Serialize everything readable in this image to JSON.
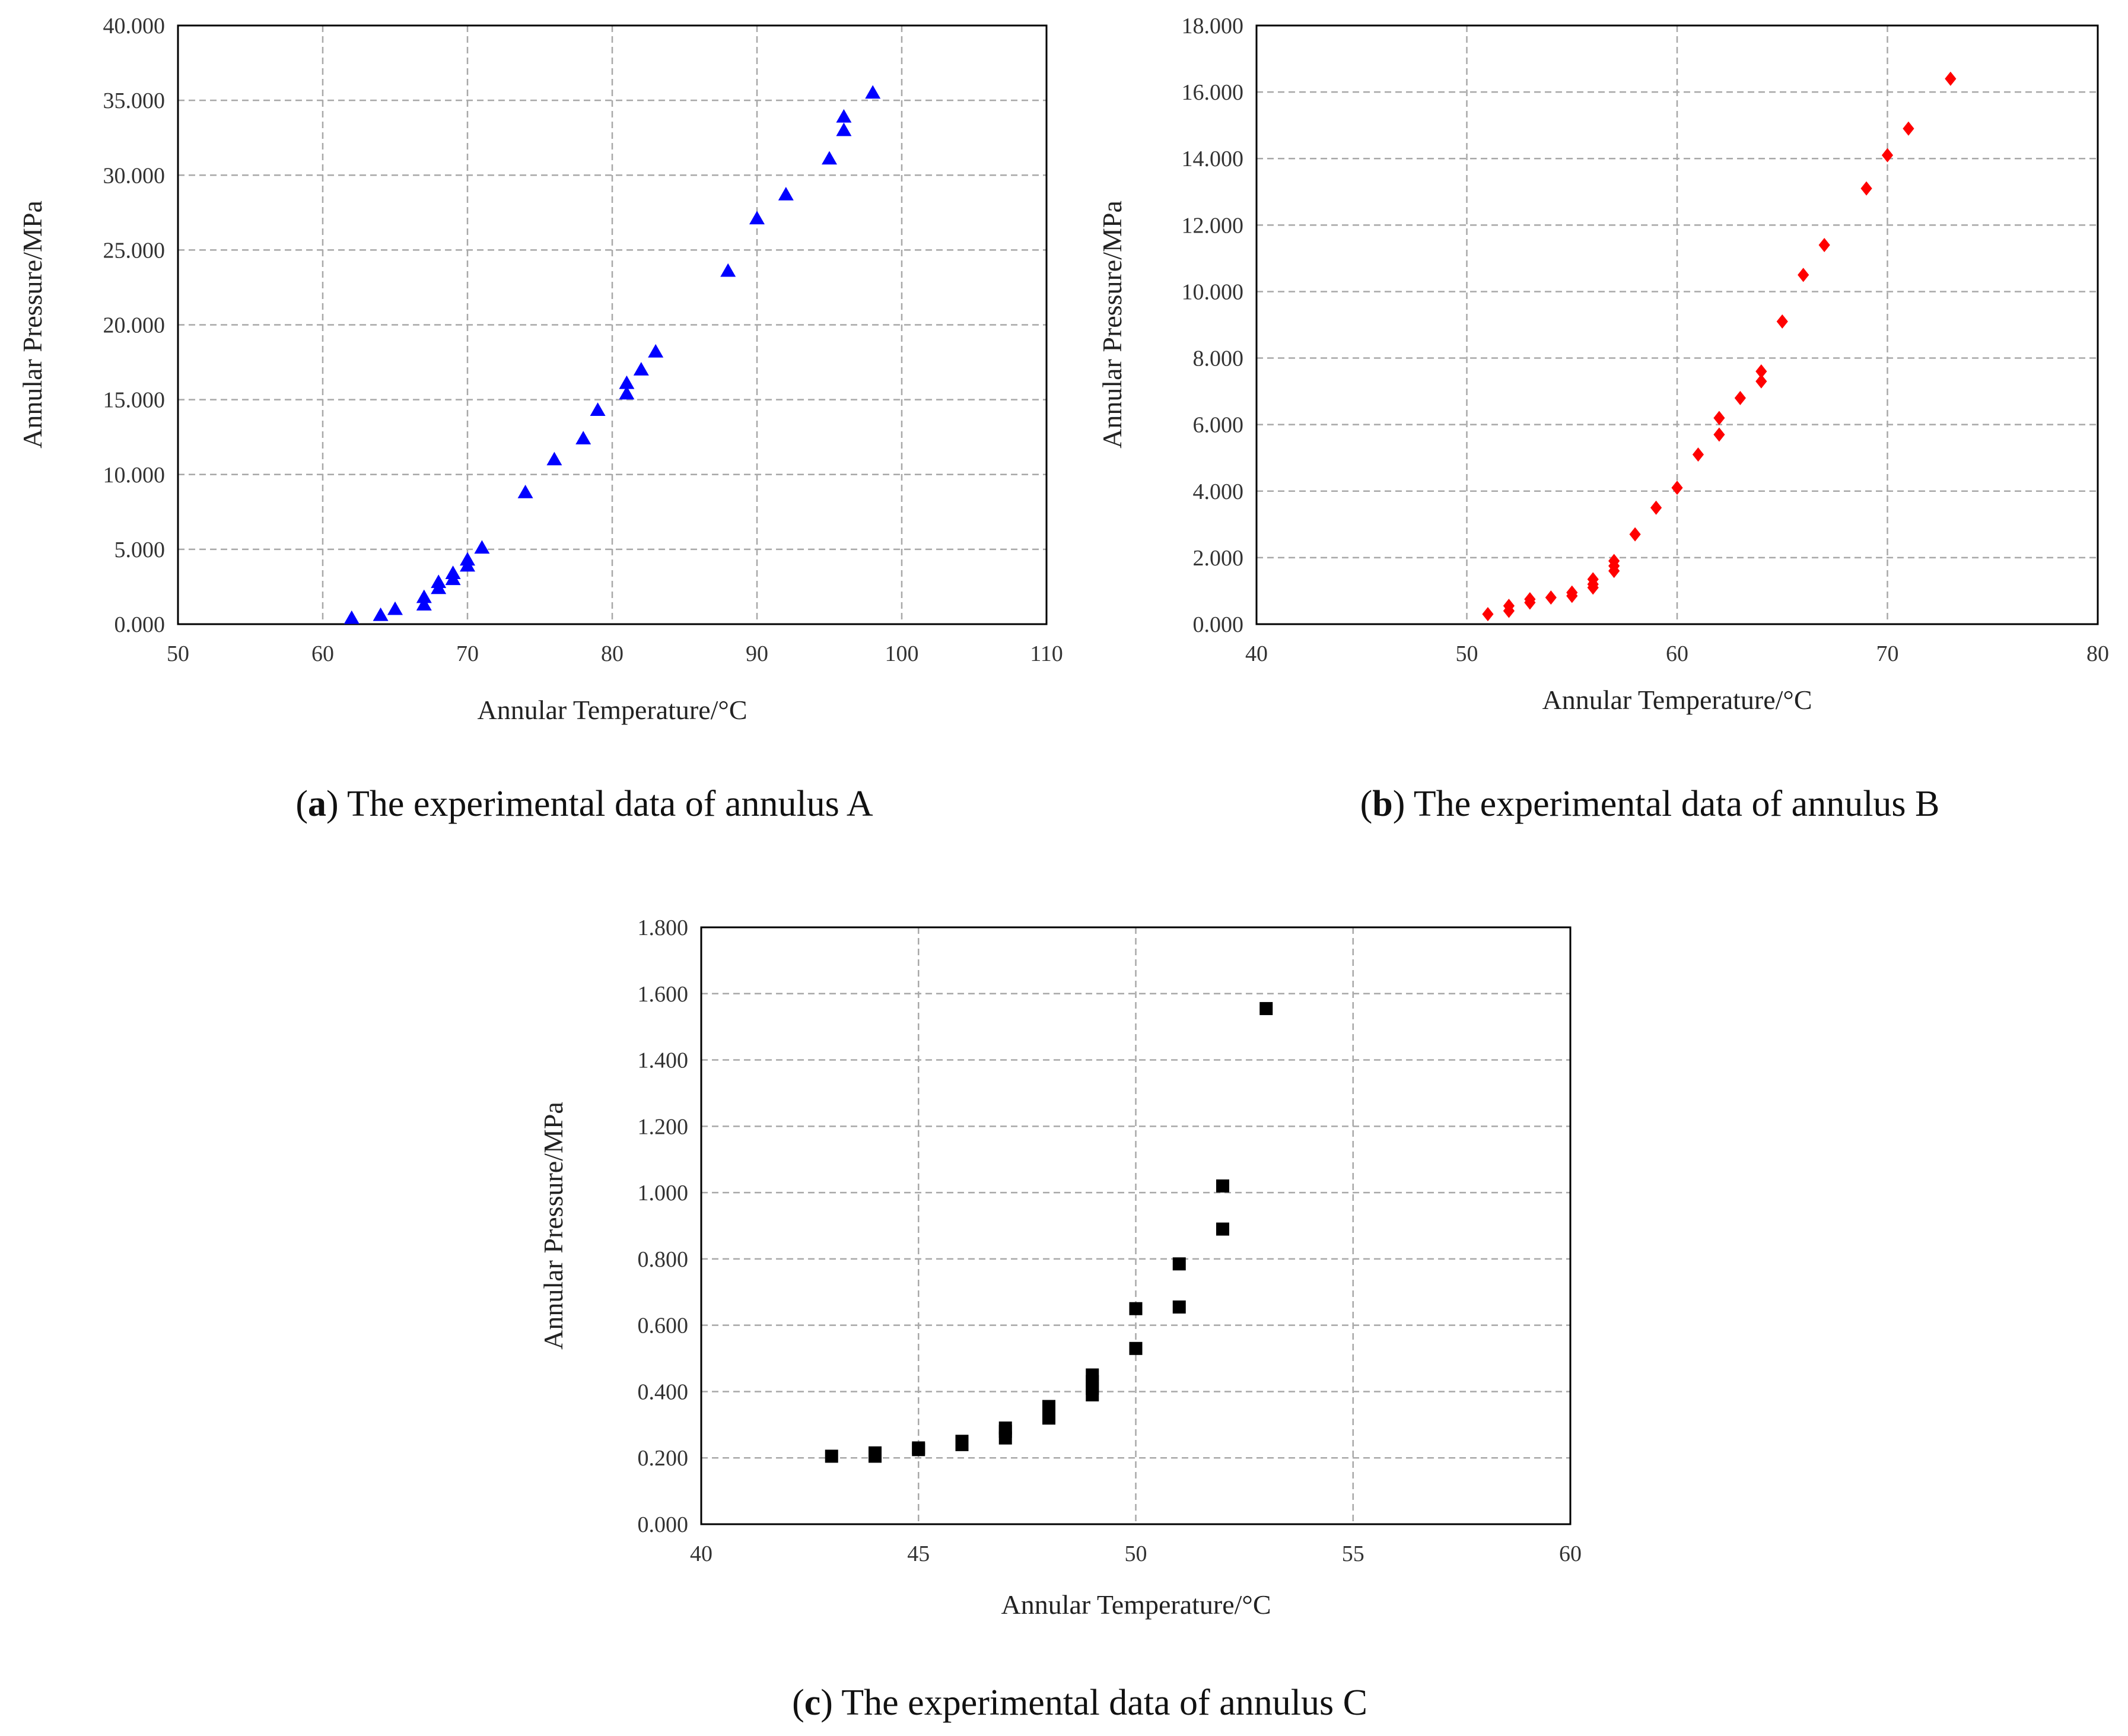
{
  "chart_data": [
    {
      "id": "a",
      "type": "scatter",
      "xlabel": "Annular Temperature/°C",
      "ylabel": "Annular Pressure/MPa",
      "xlim": [
        50,
        110
      ],
      "ylim": [
        0,
        40
      ],
      "x_ticks": [
        50,
        60,
        70,
        80,
        90,
        100,
        110
      ],
      "y_ticks": [
        "0.000",
        "5.000",
        "10.000",
        "15.000",
        "20.000",
        "25.000",
        "30.000",
        "35.000",
        "40.000"
      ],
      "grid": true,
      "marker": "triangle",
      "color": "#0000ff",
      "caption_letter": "a",
      "caption_text": "The experimental data of annulus A",
      "series": [
        {
          "name": "annulus A",
          "points": [
            [
              62,
              0.4
            ],
            [
              64,
              0.6
            ],
            [
              65,
              1.0
            ],
            [
              67,
              1.3
            ],
            [
              67,
              1.8
            ],
            [
              68,
              2.4
            ],
            [
              68,
              2.8
            ],
            [
              69,
              3.0
            ],
            [
              69,
              3.4
            ],
            [
              70,
              3.9
            ],
            [
              70,
              4.3
            ],
            [
              71,
              5.1
            ],
            [
              74,
              8.8
            ],
            [
              76,
              11.0
            ],
            [
              78,
              12.4
            ],
            [
              79,
              14.3
            ],
            [
              81,
              15.4
            ],
            [
              81,
              16.1
            ],
            [
              82,
              17.0
            ],
            [
              83,
              18.2
            ],
            [
              88,
              23.6
            ],
            [
              90,
              27.1
            ],
            [
              92,
              28.7
            ],
            [
              95,
              31.1
            ],
            [
              96,
              33.0
            ],
            [
              96,
              33.9
            ],
            [
              98,
              35.5
            ]
          ]
        }
      ]
    },
    {
      "id": "b",
      "type": "scatter",
      "xlabel": "Annular Temperature/°C",
      "ylabel": "Annular Pressure/MPa",
      "xlim": [
        40,
        80
      ],
      "ylim": [
        0,
        18
      ],
      "x_ticks": [
        40,
        50,
        60,
        70,
        80
      ],
      "y_ticks": [
        "0.000",
        "2.000",
        "4.000",
        "6.000",
        "8.000",
        "10.000",
        "12.000",
        "14.000",
        "16.000",
        "18.000"
      ],
      "grid": true,
      "marker": "diamond",
      "color": "#ff0000",
      "caption_letter": "b",
      "caption_text": "The experimental data of annulus B",
      "series": [
        {
          "name": "annulus B",
          "points": [
            [
              51,
              0.3
            ],
            [
              52,
              0.4
            ],
            [
              52,
              0.55
            ],
            [
              53,
              0.65
            ],
            [
              53,
              0.75
            ],
            [
              54,
              0.8
            ],
            [
              55,
              0.85
            ],
            [
              55,
              0.95
            ],
            [
              56,
              1.1
            ],
            [
              56,
              1.2
            ],
            [
              56,
              1.35
            ],
            [
              57,
              1.6
            ],
            [
              57,
              1.75
            ],
            [
              57,
              1.9
            ],
            [
              58,
              2.7
            ],
            [
              59,
              3.5
            ],
            [
              60,
              4.1
            ],
            [
              61,
              5.1
            ],
            [
              62,
              5.7
            ],
            [
              62,
              6.2
            ],
            [
              63,
              6.8
            ],
            [
              64,
              7.3
            ],
            [
              64,
              7.6
            ],
            [
              65,
              9.1
            ],
            [
              66,
              10.5
            ],
            [
              67,
              11.4
            ],
            [
              69,
              13.1
            ],
            [
              70,
              14.1
            ],
            [
              71,
              14.9
            ],
            [
              73,
              16.4
            ]
          ]
        }
      ]
    },
    {
      "id": "c",
      "type": "scatter",
      "xlabel": "Annular Temperature/°C",
      "ylabel": "Annular Pressure/MPa",
      "xlim": [
        40,
        60
      ],
      "ylim": [
        0,
        1.8
      ],
      "x_ticks": [
        40,
        45,
        50,
        55,
        60
      ],
      "y_ticks": [
        "0.000",
        "0.200",
        "0.400",
        "0.600",
        "0.800",
        "1.000",
        "1.200",
        "1.400",
        "1.600",
        "1.800"
      ],
      "grid": true,
      "marker": "square",
      "color": "#000000",
      "caption_letter": "c",
      "caption_text": "The experimental data of annulus C",
      "series": [
        {
          "name": "annulus C",
          "points": [
            [
              43,
              0.205
            ],
            [
              44,
              0.205
            ],
            [
              44,
              0.215
            ],
            [
              45,
              0.225
            ],
            [
              45,
              0.23
            ],
            [
              46,
              0.24
            ],
            [
              46,
              0.25
            ],
            [
              47,
              0.26
            ],
            [
              47,
              0.28
            ],
            [
              47,
              0.29
            ],
            [
              48,
              0.32
            ],
            [
              48,
              0.34
            ],
            [
              48,
              0.355
            ],
            [
              49,
              0.39
            ],
            [
              49,
              0.41
            ],
            [
              49,
              0.43
            ],
            [
              49,
              0.45
            ],
            [
              50,
              0.53
            ],
            [
              50,
              0.65
            ],
            [
              51,
              0.655
            ],
            [
              51,
              0.785
            ],
            [
              52,
              0.89
            ],
            [
              52,
              1.02
            ],
            [
              53,
              1.555
            ]
          ]
        }
      ]
    }
  ]
}
